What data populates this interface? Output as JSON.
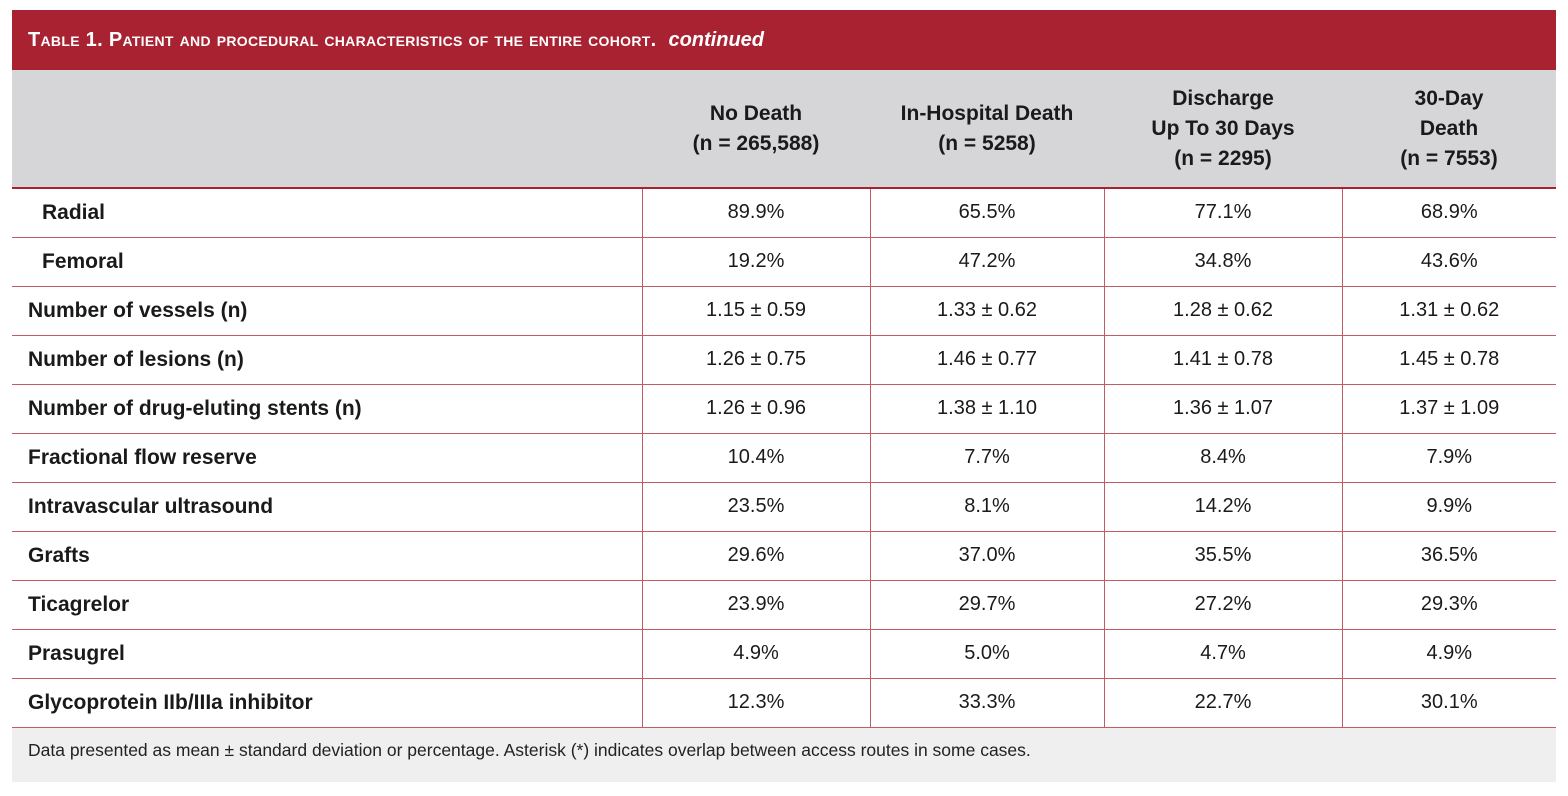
{
  "title": {
    "main": "Table 1. Patient and procedural characteristics of the entire cohort.",
    "continued": "continued"
  },
  "columns": [
    {
      "line1": "No Death",
      "line2": "(n = 265,588)",
      "line3": ""
    },
    {
      "line1": "In-Hospital Death",
      "line2": "(n = 5258)",
      "line3": ""
    },
    {
      "line1": "Discharge",
      "line2": "Up To 30 Days",
      "line3": "(n = 2295)"
    },
    {
      "line1": "30-Day",
      "line2": "Death",
      "line3": "(n = 7553)"
    }
  ],
  "rows": [
    {
      "label": "Radial",
      "values": [
        "89.9%",
        "65.5%",
        "77.1%",
        "68.9%"
      ]
    },
    {
      "label": "Femoral",
      "values": [
        "19.2%",
        "47.2%",
        "34.8%",
        "43.6%"
      ]
    },
    {
      "label": "Number of vessels (n)",
      "values": [
        "1.15 ± 0.59",
        "1.33 ± 0.62",
        "1.28 ± 0.62",
        "1.31 ± 0.62"
      ]
    },
    {
      "label": "Number of lesions (n)",
      "values": [
        "1.26 ± 0.75",
        "1.46 ± 0.77",
        "1.41 ± 0.78",
        "1.45 ± 0.78"
      ]
    },
    {
      "label": "Number of drug-eluting stents (n)",
      "values": [
        "1.26 ± 0.96",
        "1.38 ± 1.10",
        "1.36 ± 1.07",
        "1.37 ± 1.09"
      ]
    },
    {
      "label": "Fractional flow reserve",
      "values": [
        "10.4%",
        "7.7%",
        "8.4%",
        "7.9%"
      ]
    },
    {
      "label": "Intravascular ultrasound",
      "values": [
        "23.5%",
        "8.1%",
        "14.2%",
        "9.9%"
      ]
    },
    {
      "label": "Grafts",
      "values": [
        "29.6%",
        "37.0%",
        "35.5%",
        "36.5%"
      ]
    },
    {
      "label": "Ticagrelor",
      "values": [
        "23.9%",
        "29.7%",
        "27.2%",
        "29.3%"
      ]
    },
    {
      "label": "Prasugrel",
      "values": [
        "4.9%",
        "5.0%",
        "4.7%",
        "4.9%"
      ]
    },
    {
      "label": "Glycoprotein IIb/IIIa inhibitor",
      "values": [
        "12.3%",
        "33.3%",
        "22.7%",
        "30.1%"
      ]
    }
  ],
  "footnote": "Data presented as mean ± standard deviation or percentage. Asterisk (*) indicates overlap between access routes in some cases.",
  "colors": {
    "accent": "#a92231",
    "header_bg": "#d6d5d8",
    "panel_bg": "#f0eff0"
  }
}
